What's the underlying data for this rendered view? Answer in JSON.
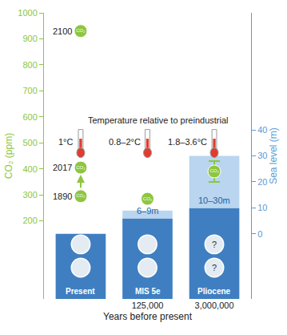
{
  "chart_data": {
    "type": "bar",
    "xlabel": "Years before present",
    "ylabel": "CO₂ (ppm)",
    "y2label": "Sea level (m)",
    "annotation": "Temperature relative to preindustrial",
    "co2_symbol": "CO₂",
    "categories": [
      null,
      "125,000",
      "3,000,000"
    ],
    "periods": [
      "Present",
      "MIS 5e",
      "Pliocene"
    ],
    "sea_level_low": [
      0,
      6,
      10
    ],
    "sea_level_high": [
      0,
      9,
      30
    ],
    "sea_level_labels": [
      null,
      "6–9m",
      "10–30m"
    ],
    "temperature_labels": [
      "1°C",
      "0.8–2°C",
      "1.8–3.6°C"
    ],
    "ice_sheet_labels": [
      null,
      null,
      "?"
    ],
    "co2_points": [
      {
        "category": 0,
        "year": "1890",
        "value": 295
      },
      {
        "category": 0,
        "year": "2017",
        "value": 405
      },
      {
        "category": 0,
        "year": "2100",
        "value": 930
      },
      {
        "category": 1,
        "value": 285
      },
      {
        "category": 2,
        "value": 390,
        "error": 40
      }
    ],
    "ylim": [
      -100,
      1000
    ],
    "yticks": [
      200,
      300,
      400,
      500,
      600,
      700,
      800,
      900,
      1000
    ],
    "y2lim": [
      -25,
      85
    ],
    "y2ticks": [
      0,
      10,
      20,
      30,
      40
    ]
  }
}
